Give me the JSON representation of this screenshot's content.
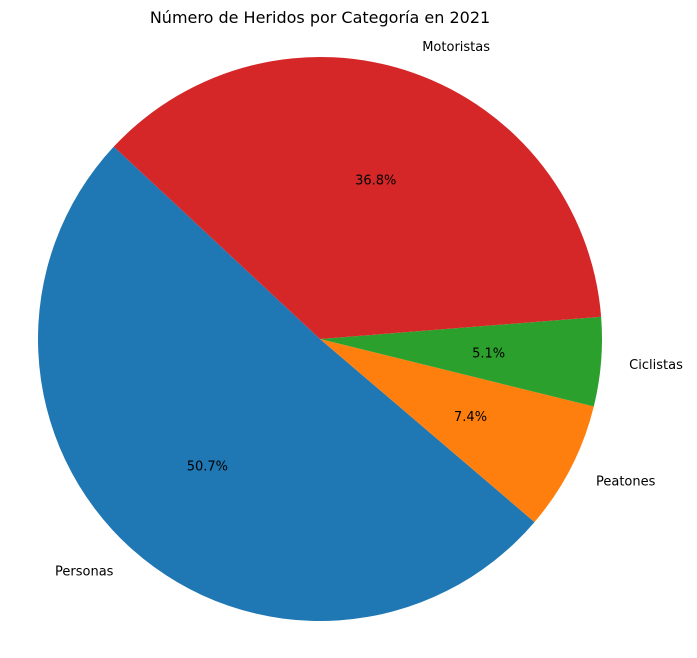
{
  "chart_data": {
    "type": "pie",
    "title": "Número de Heridos por Categoría en 2021",
    "slices": [
      {
        "label": "Personas",
        "pct_label": "50.7%",
        "value": 50.7,
        "color": "#1f77b4"
      },
      {
        "label": "Peatones",
        "pct_label": "7.4%",
        "value": 7.4,
        "color": "#ff7f0e"
      },
      {
        "label": "Ciclistas",
        "pct_label": "5.1%",
        "value": 5.1,
        "color": "#2ca02c"
      },
      {
        "label": "Motoristas",
        "pct_label": "36.8%",
        "value": 36.8,
        "color": "#d62728"
      }
    ],
    "start_angle_deg": 137,
    "direction": "counterclockwise"
  }
}
